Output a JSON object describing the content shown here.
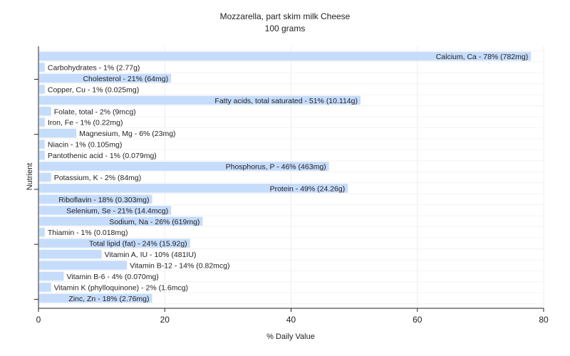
{
  "chart_data": {
    "type": "bar",
    "orientation": "horizontal",
    "title": "Mozzarella, part skim milk Cheese",
    "subtitle": "100 grams",
    "xlabel": "% Daily Value",
    "ylabel": "Nutrient",
    "xlim": [
      0,
      80
    ],
    "xticks": [
      0,
      20,
      40,
      60,
      80
    ],
    "grid": true,
    "bar_color": "#c6dcfb",
    "categories": [
      "Calcium, Ca",
      "Carbohydrates",
      "Cholesterol",
      "Copper, Cu",
      "Fatty acids, total saturated",
      "Folate, total",
      "Iron, Fe",
      "Magnesium, Mg",
      "Niacin",
      "Pantothenic acid",
      "Phosphorus, P",
      "Potassium, K",
      "Protein",
      "Riboflavin",
      "Selenium, Se",
      "Sodium, Na",
      "Thiamin",
      "Total lipid (fat)",
      "Vitamin A, IU",
      "Vitamin B-12",
      "Vitamin B-6",
      "Vitamin K (phylloquinone)",
      "Zinc, Zn"
    ],
    "values": [
      78,
      1,
      21,
      1,
      51,
      2,
      1,
      6,
      1,
      1,
      46,
      2,
      49,
      18,
      21,
      26,
      1,
      24,
      10,
      14,
      4,
      2,
      18
    ],
    "labels": [
      "Calcium, Ca - 78% (782mg)",
      "Carbohydrates - 1% (2.77g)",
      "Cholesterol - 21% (64mg)",
      "Copper, Cu - 1% (0.025mg)",
      "Fatty acids, total saturated - 51% (10.114g)",
      "Folate, total - 2% (9mcg)",
      "Iron, Fe - 1% (0.22mg)",
      "Magnesium, Mg - 6% (23mg)",
      "Niacin - 1% (0.105mg)",
      "Pantothenic acid - 1% (0.079mg)",
      "Phosphorus, P - 46% (463mg)",
      "Potassium, K - 2% (84mg)",
      "Protein - 49% (24.26g)",
      "Riboflavin - 18% (0.303mg)",
      "Selenium, Se - 21% (14.4mcg)",
      "Sodium, Na - 26% (619mg)",
      "Thiamin - 1% (0.018mg)",
      "Total lipid (fat) - 24% (15.92g)",
      "Vitamin A, IU - 10% (481IU)",
      "Vitamin B-12 - 14% (0.82mcg)",
      "Vitamin B-6 - 4% (0.070mg)",
      "Vitamin K (phylloquinone) - 2% (1.6mcg)",
      "Zinc, Zn - 18% (2.76mg)"
    ]
  }
}
